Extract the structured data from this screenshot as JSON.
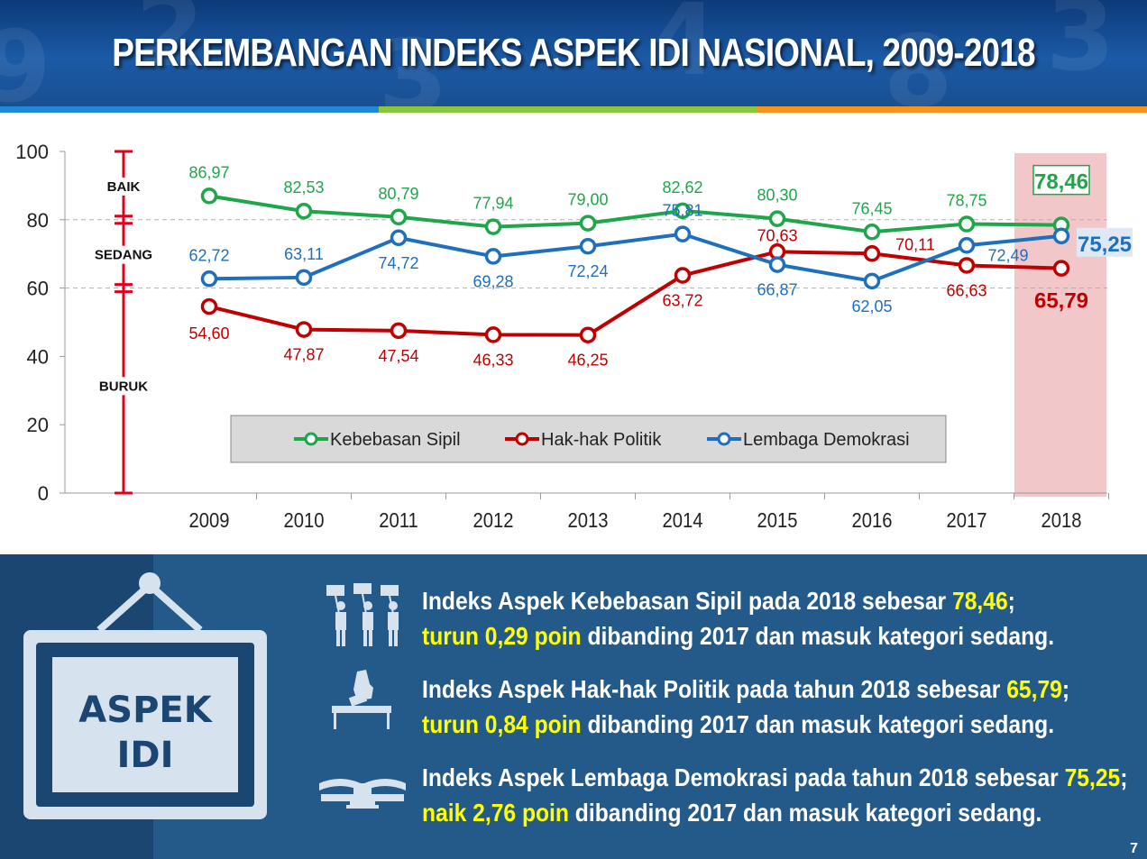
{
  "title": "PERKEMBANGAN INDEKS ASPEK IDI NASIONAL, 2009-2018",
  "chart_data": {
    "type": "line",
    "categories": [
      "2009",
      "2010",
      "2011",
      "2012",
      "2013",
      "2014",
      "2015",
      "2016",
      "2017",
      "2018"
    ],
    "ylim": [
      0,
      100
    ],
    "yticks": [
      "0",
      "20",
      "40",
      "60",
      "80",
      "100"
    ],
    "grid": "dashed lines at 60 and 80",
    "legend_position": "bottom-center inside plot",
    "highlight_category": "2018",
    "categories_scale": [
      {
        "label": "BAIK",
        "range": [
          80,
          100
        ]
      },
      {
        "label": "SEDANG",
        "range": [
          60,
          80
        ]
      },
      {
        "label": "BURUK",
        "range": [
          0,
          60
        ]
      }
    ],
    "series": [
      {
        "name": "Kebebasan Sipil",
        "color": "#1fa64a",
        "values": [
          86.97,
          82.53,
          80.79,
          77.94,
          79.0,
          82.62,
          80.3,
          76.45,
          78.75,
          78.46
        ],
        "labels": [
          "86,97",
          "82,53",
          "80,79",
          "77,94",
          "79,00",
          "82,62",
          "80,30",
          "76,45",
          "78,75",
          "78,46"
        ]
      },
      {
        "name": "Hak-hak Politik",
        "color": "#c00000",
        "values": [
          54.6,
          47.87,
          47.54,
          46.33,
          46.25,
          63.72,
          70.63,
          70.11,
          66.63,
          65.79
        ],
        "labels": [
          "54,60",
          "47,87",
          "47,54",
          "46,33",
          "46,25",
          "63,72",
          "70,63",
          "70,11",
          "66,63",
          "65,79"
        ]
      },
      {
        "name": "Lembaga Demokrasi",
        "color": "#1f6fbf",
        "values": [
          62.72,
          63.11,
          74.72,
          69.28,
          72.24,
          75.81,
          66.87,
          62.05,
          72.49,
          75.25
        ],
        "labels": [
          "62,72",
          "63,11",
          "74,72",
          "69,28",
          "72,24",
          "75,81",
          "66,87",
          "62,05",
          "72,49",
          "75,25"
        ]
      }
    ]
  },
  "sign": {
    "line1": "ASPEK",
    "line2": "IDI"
  },
  "statements": [
    {
      "icon": "people-holding-signs-icon",
      "p1": "Indeks Aspek Kebebasan Sipil pada 2018 sebesar ",
      "v": "78,46",
      "p2": ";",
      "h2": "turun 0,29 poin",
      "p3": " dibanding 2017 dan masuk kategori sedang."
    },
    {
      "icon": "ballot-box-icon",
      "p1": "Indeks Aspek Hak-hak Politik  pada tahun 2018 sebesar ",
      "v": "65,79",
      "p2": ";",
      "h2": "turun 0,84 poin",
      "p3": " dibanding 2017 dan masuk kategori sedang."
    },
    {
      "icon": "institution-building-icon",
      "p1": "Indeks Aspek Lembaga Demokrasi pada tahun 2018 sebesar ",
      "v": "75,25",
      "p2": ";",
      "h2": "naik 2,76 poin",
      "p3": " dibanding 2017 dan masuk kategori sedang."
    }
  ],
  "page_number": "7"
}
